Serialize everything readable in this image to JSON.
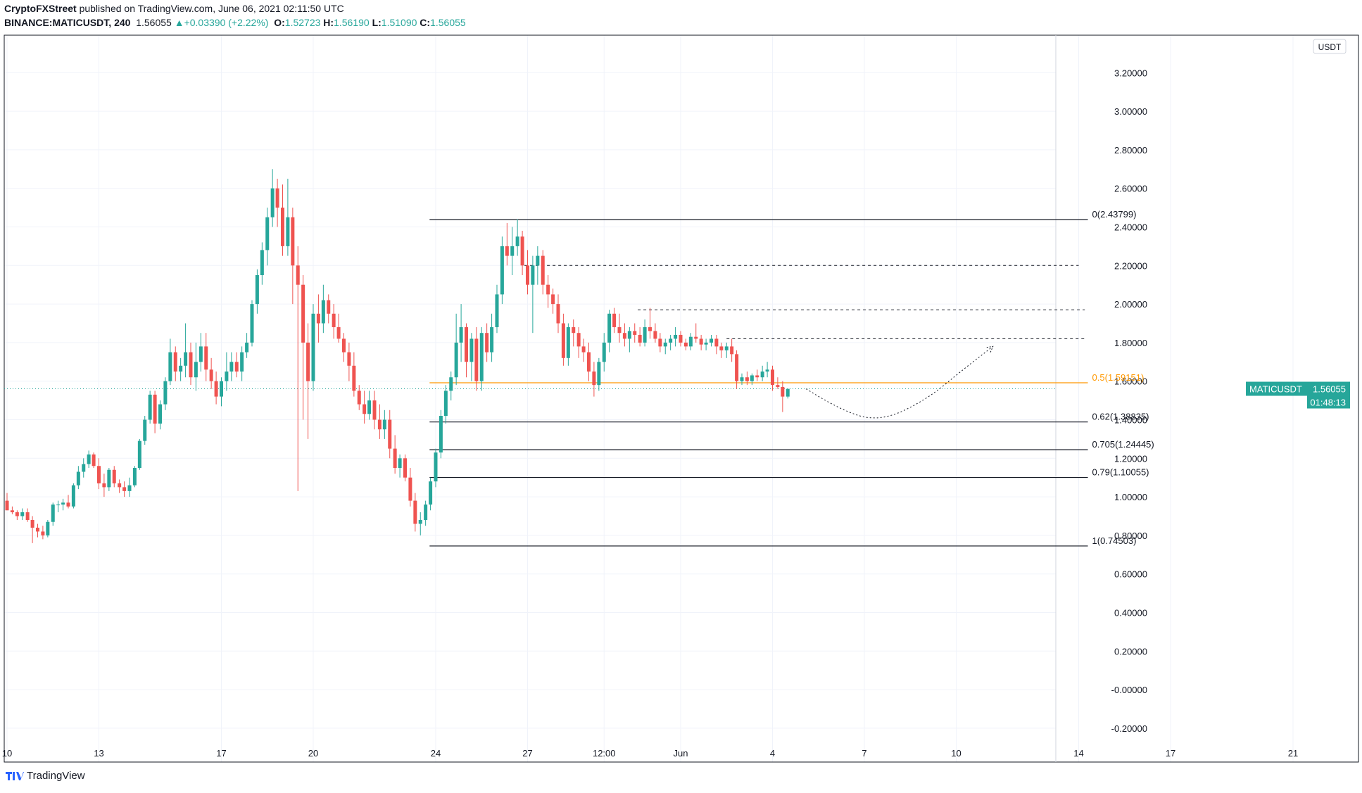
{
  "header": {
    "publisher": "CryptoFXStreet",
    "published_text": "published on TradingView.com, June 06, 2021 02:11:50 UTC",
    "symbol": "BINANCE:MATICUSDT, 240",
    "last": "1.56055",
    "change": "+0.03390 (+2.22%)",
    "o_label": "O:",
    "o": "1.52723",
    "h_label": "H:",
    "h": "1.56190",
    "l_label": "L:",
    "l": "1.51090",
    "c_label": "C:",
    "c": "1.56055"
  },
  "footer": {
    "brand": "TradingView"
  },
  "colors": {
    "up": "#26a69a",
    "down": "#ef5350",
    "fib_mid": "#ff9800",
    "grid": "#f0f3fa",
    "label_bg": "#26a69a"
  },
  "chart_data": {
    "type": "candlestick",
    "currency_label": "USDT",
    "ylim": [
      -0.28,
      3.4
    ],
    "y_ticks": [
      "3.20000",
      "3.00000",
      "2.80000",
      "2.60000",
      "2.40000",
      "2.20000",
      "2.00000",
      "1.80000",
      "1.60000",
      "1.40000",
      "1.20000",
      "1.00000",
      "0.80000",
      "0.60000",
      "0.40000",
      "0.20000",
      "-0.00000",
      "-0.20000"
    ],
    "y_tick_values": [
      3.2,
      3.0,
      2.8,
      2.6,
      2.4,
      2.2,
      2.0,
      1.8,
      1.6,
      1.4,
      1.2,
      1.0,
      0.8,
      0.6,
      0.4,
      0.2,
      0.0,
      -0.2
    ],
    "x_ticks": [
      "10",
      "13",
      "17",
      "20",
      "24",
      "27",
      "12:00",
      "Jun",
      "4",
      "7",
      "10",
      "14",
      "17",
      "21"
    ],
    "x_tick_days": [
      10,
      13,
      17,
      20,
      24,
      27,
      29.5,
      32,
      35,
      38,
      41,
      45,
      48,
      52
    ],
    "price_label": {
      "symbol": "MATICUSDT",
      "value": "1.56055",
      "countdown": "01:48:13",
      "y": 1.56055
    },
    "fib_levels": [
      {
        "label": "0(2.43799)",
        "value": 2.43799
      },
      {
        "label": "0.5(1.59151)",
        "value": 1.59151
      },
      {
        "label": "0.62(1.38835)",
        "value": 1.38835
      },
      {
        "label": "0.705(1.24445)",
        "value": 1.24445
      },
      {
        "label": "0.79(1.10055)",
        "value": 1.10055
      },
      {
        "label": "1(0.74503)",
        "value": 0.74503
      }
    ],
    "fib_start_day": 23.8,
    "fib_end_day": 45.3,
    "dashed_levels": [
      {
        "value": 2.2,
        "from": 26.9,
        "to": 45.0
      },
      {
        "value": 1.97,
        "from": 30.6,
        "to": 45.2
      },
      {
        "value": 1.82,
        "from": 33.5,
        "to": 45.2
      }
    ],
    "projection": [
      [
        36.1,
        1.56
      ],
      [
        37.2,
        1.45
      ],
      [
        38.5,
        1.39
      ],
      [
        40.0,
        1.5
      ],
      [
        41.3,
        1.67
      ],
      [
        42.2,
        1.78
      ]
    ],
    "candles": [
      [
        10.0,
        0.98,
        1.02,
        0.96,
        0.93
      ],
      [
        10.17,
        0.93,
        0.95,
        0.91,
        0.92
      ],
      [
        10.33,
        0.92,
        0.93,
        0.88,
        0.9
      ],
      [
        10.5,
        0.9,
        0.94,
        0.88,
        0.92
      ],
      [
        10.67,
        0.92,
        0.94,
        0.87,
        0.88
      ],
      [
        10.83,
        0.88,
        0.9,
        0.76,
        0.84
      ],
      [
        11.0,
        0.84,
        0.86,
        0.79,
        0.82
      ],
      [
        11.17,
        0.82,
        0.85,
        0.78,
        0.8
      ],
      [
        11.33,
        0.8,
        0.88,
        0.79,
        0.87
      ],
      [
        11.5,
        0.87,
        0.97,
        0.85,
        0.96
      ],
      [
        11.67,
        0.96,
        0.98,
        0.92,
        0.96
      ],
      [
        11.83,
        0.96,
        0.99,
        0.93,
        0.97
      ],
      [
        12.0,
        0.97,
        1.01,
        0.94,
        0.95
      ],
      [
        12.17,
        0.95,
        1.07,
        0.94,
        1.06
      ],
      [
        12.33,
        1.06,
        1.16,
        1.04,
        1.13
      ],
      [
        12.5,
        1.13,
        1.2,
        1.1,
        1.17
      ],
      [
        12.67,
        1.17,
        1.24,
        1.15,
        1.22
      ],
      [
        12.83,
        1.22,
        1.23,
        1.15,
        1.16
      ],
      [
        13.0,
        1.16,
        1.2,
        1.04,
        1.07
      ],
      [
        13.17,
        1.07,
        1.12,
        1.0,
        1.05
      ],
      [
        13.33,
        1.05,
        1.15,
        1.03,
        1.14
      ],
      [
        13.5,
        1.14,
        1.16,
        1.05,
        1.07
      ],
      [
        13.67,
        1.07,
        1.09,
        1.02,
        1.05
      ],
      [
        13.83,
        1.05,
        1.08,
        1.0,
        1.03
      ],
      [
        14.0,
        1.03,
        1.1,
        1.0,
        1.06
      ],
      [
        14.17,
        1.06,
        1.16,
        1.05,
        1.15
      ],
      [
        14.33,
        1.15,
        1.3,
        1.14,
        1.29
      ],
      [
        14.5,
        1.29,
        1.42,
        1.27,
        1.4
      ],
      [
        14.67,
        1.4,
        1.55,
        1.38,
        1.53
      ],
      [
        14.83,
        1.53,
        1.55,
        1.33,
        1.38
      ],
      [
        15.0,
        1.38,
        1.5,
        1.35,
        1.48
      ],
      [
        15.17,
        1.48,
        1.62,
        1.45,
        1.6
      ],
      [
        15.33,
        1.6,
        1.82,
        1.58,
        1.75
      ],
      [
        15.5,
        1.75,
        1.78,
        1.6,
        1.65
      ],
      [
        15.67,
        1.65,
        1.72,
        1.6,
        1.68
      ],
      [
        15.83,
        1.68,
        1.9,
        1.62,
        1.75
      ],
      [
        16.0,
        1.75,
        1.8,
        1.58,
        1.62
      ],
      [
        16.17,
        1.62,
        1.8,
        1.55,
        1.7
      ],
      [
        16.33,
        1.7,
        1.85,
        1.65,
        1.78
      ],
      [
        16.5,
        1.78,
        1.85,
        1.6,
        1.66
      ],
      [
        16.67,
        1.66,
        1.72,
        1.56,
        1.6
      ],
      [
        16.83,
        1.6,
        1.65,
        1.48,
        1.52
      ],
      [
        17.0,
        1.52,
        1.62,
        1.47,
        1.6
      ],
      [
        17.17,
        1.6,
        1.75,
        1.55,
        1.65
      ],
      [
        17.33,
        1.65,
        1.75,
        1.6,
        1.7
      ],
      [
        17.5,
        1.7,
        1.75,
        1.62,
        1.65
      ],
      [
        17.67,
        1.65,
        1.78,
        1.6,
        1.75
      ],
      [
        17.83,
        1.75,
        1.85,
        1.72,
        1.8
      ],
      [
        18.0,
        1.8,
        2.02,
        1.78,
        2.0
      ],
      [
        18.17,
        2.0,
        2.18,
        1.95,
        2.15
      ],
      [
        18.33,
        2.15,
        2.32,
        2.1,
        2.28
      ],
      [
        18.5,
        2.28,
        2.5,
        2.2,
        2.45
      ],
      [
        18.67,
        2.45,
        2.7,
        2.4,
        2.6
      ],
      [
        18.83,
        2.6,
        2.65,
        2.4,
        2.5
      ],
      [
        19.0,
        2.5,
        2.62,
        2.25,
        2.3
      ],
      [
        19.17,
        2.3,
        2.65,
        2.25,
        2.45
      ],
      [
        19.33,
        2.45,
        2.5,
        2.0,
        2.2
      ],
      [
        19.5,
        2.2,
        2.3,
        1.03,
        2.1
      ],
      [
        19.67,
        2.1,
        2.15,
        1.4,
        1.8
      ],
      [
        19.83,
        1.8,
        1.9,
        1.3,
        1.6
      ],
      [
        20.0,
        1.6,
        2.0,
        1.55,
        1.95
      ],
      [
        20.17,
        1.95,
        2.05,
        1.8,
        1.9
      ],
      [
        20.33,
        1.9,
        2.1,
        1.85,
        2.02
      ],
      [
        20.5,
        2.02,
        2.05,
        1.9,
        1.95
      ],
      [
        20.67,
        1.95,
        2.0,
        1.82,
        1.88
      ],
      [
        20.83,
        1.88,
        1.95,
        1.8,
        1.82
      ],
      [
        21.0,
        1.82,
        1.85,
        1.7,
        1.75
      ],
      [
        21.17,
        1.75,
        1.8,
        1.6,
        1.68
      ],
      [
        21.33,
        1.68,
        1.75,
        1.52,
        1.55
      ],
      [
        21.5,
        1.55,
        1.58,
        1.45,
        1.48
      ],
      [
        21.67,
        1.48,
        1.55,
        1.38,
        1.43
      ],
      [
        21.83,
        1.43,
        1.55,
        1.4,
        1.5
      ],
      [
        22.0,
        1.5,
        1.55,
        1.35,
        1.4
      ],
      [
        22.17,
        1.4,
        1.48,
        1.3,
        1.35
      ],
      [
        22.33,
        1.35,
        1.45,
        1.3,
        1.4
      ],
      [
        22.5,
        1.4,
        1.45,
        1.2,
        1.25
      ],
      [
        22.67,
        1.25,
        1.32,
        1.12,
        1.15
      ],
      [
        22.83,
        1.15,
        1.22,
        1.1,
        1.2
      ],
      [
        23.0,
        1.2,
        1.22,
        1.08,
        1.1
      ],
      [
        23.17,
        1.1,
        1.15,
        0.95,
        0.98
      ],
      [
        23.33,
        0.98,
        1.02,
        0.82,
        0.86
      ],
      [
        23.5,
        0.86,
        0.92,
        0.8,
        0.88
      ],
      [
        23.67,
        0.88,
        0.98,
        0.85,
        0.96
      ],
      [
        23.83,
        0.96,
        1.1,
        0.93,
        1.08
      ],
      [
        24.0,
        1.08,
        1.25,
        1.05,
        1.23
      ],
      [
        24.17,
        1.23,
        1.45,
        1.2,
        1.42
      ],
      [
        24.33,
        1.42,
        1.58,
        1.38,
        1.55
      ],
      [
        24.5,
        1.55,
        1.65,
        1.5,
        1.62
      ],
      [
        24.67,
        1.62,
        1.95,
        1.58,
        1.8
      ],
      [
        24.83,
        1.8,
        2.0,
        1.7,
        1.88
      ],
      [
        25.0,
        1.88,
        1.9,
        1.62,
        1.7
      ],
      [
        25.17,
        1.7,
        1.85,
        1.6,
        1.82
      ],
      [
        25.33,
        1.82,
        1.88,
        1.55,
        1.6
      ],
      [
        25.5,
        1.6,
        1.88,
        1.55,
        1.85
      ],
      [
        25.67,
        1.85,
        1.9,
        1.7,
        1.75
      ],
      [
        25.83,
        1.75,
        1.95,
        1.7,
        1.88
      ],
      [
        26.0,
        1.88,
        2.1,
        1.85,
        2.05
      ],
      [
        26.17,
        2.05,
        2.35,
        2.0,
        2.3
      ],
      [
        26.33,
        2.3,
        2.42,
        2.2,
        2.25
      ],
      [
        26.5,
        2.25,
        2.4,
        2.15,
        2.3
      ],
      [
        26.67,
        2.3,
        2.44,
        2.25,
        2.35
      ],
      [
        26.83,
        2.35,
        2.38,
        2.15,
        2.2
      ],
      [
        27.0,
        2.2,
        2.28,
        2.05,
        2.1
      ],
      [
        27.17,
        2.1,
        2.25,
        1.85,
        2.2
      ],
      [
        27.33,
        2.2,
        2.3,
        2.1,
        2.25
      ],
      [
        27.5,
        2.25,
        2.28,
        2.05,
        2.1
      ],
      [
        27.67,
        2.1,
        2.15,
        1.98,
        2.05
      ],
      [
        27.83,
        2.05,
        2.08,
        1.95,
        2.0
      ],
      [
        28.0,
        2.0,
        2.05,
        1.85,
        1.9
      ],
      [
        28.17,
        1.9,
        1.95,
        1.68,
        1.72
      ],
      [
        28.33,
        1.72,
        1.9,
        1.68,
        1.88
      ],
      [
        28.5,
        1.88,
        1.92,
        1.78,
        1.85
      ],
      [
        28.67,
        1.85,
        1.88,
        1.72,
        1.78
      ],
      [
        28.83,
        1.78,
        1.82,
        1.7,
        1.75
      ],
      [
        29.0,
        1.75,
        1.8,
        1.6,
        1.65
      ],
      [
        29.17,
        1.65,
        1.7,
        1.52,
        1.58
      ],
      [
        29.33,
        1.58,
        1.72,
        1.55,
        1.7
      ],
      [
        29.5,
        1.7,
        1.85,
        1.65,
        1.8
      ],
      [
        29.67,
        1.8,
        1.97,
        1.75,
        1.95
      ],
      [
        29.83,
        1.95,
        1.98,
        1.85,
        1.88
      ],
      [
        30.0,
        1.88,
        1.95,
        1.8,
        1.85
      ],
      [
        30.17,
        1.85,
        1.9,
        1.78,
        1.82
      ],
      [
        30.33,
        1.82,
        1.88,
        1.75,
        1.86
      ],
      [
        30.5,
        1.86,
        1.9,
        1.8,
        1.84
      ],
      [
        30.67,
        1.84,
        1.88,
        1.78,
        1.8
      ],
      [
        30.83,
        1.8,
        1.92,
        1.78,
        1.88
      ],
      [
        31.0,
        1.88,
        1.98,
        1.82,
        1.86
      ],
      [
        31.17,
        1.86,
        1.9,
        1.8,
        1.82
      ],
      [
        31.33,
        1.82,
        1.85,
        1.75,
        1.78
      ],
      [
        31.5,
        1.78,
        1.82,
        1.74,
        1.8
      ],
      [
        31.67,
        1.8,
        1.84,
        1.76,
        1.82
      ],
      [
        31.83,
        1.82,
        1.88,
        1.78,
        1.84
      ],
      [
        32.0,
        1.84,
        1.86,
        1.78,
        1.8
      ],
      [
        32.17,
        1.8,
        1.82,
        1.76,
        1.78
      ],
      [
        32.33,
        1.78,
        1.85,
        1.76,
        1.83
      ],
      [
        32.5,
        1.83,
        1.9,
        1.8,
        1.82
      ],
      [
        32.67,
        1.82,
        1.84,
        1.76,
        1.79
      ],
      [
        32.83,
        1.79,
        1.82,
        1.76,
        1.8
      ],
      [
        33.0,
        1.8,
        1.84,
        1.78,
        1.82
      ],
      [
        33.17,
        1.82,
        1.84,
        1.74,
        1.78
      ],
      [
        33.33,
        1.78,
        1.8,
        1.72,
        1.76
      ],
      [
        33.5,
        1.76,
        1.8,
        1.72,
        1.78
      ],
      [
        33.67,
        1.78,
        1.82,
        1.7,
        1.74
      ],
      [
        33.83,
        1.74,
        1.76,
        1.56,
        1.6
      ],
      [
        34.0,
        1.6,
        1.64,
        1.58,
        1.62
      ],
      [
        34.17,
        1.62,
        1.65,
        1.58,
        1.6
      ],
      [
        34.33,
        1.6,
        1.64,
        1.58,
        1.63
      ],
      [
        34.5,
        1.63,
        1.66,
        1.6,
        1.62
      ],
      [
        34.67,
        1.62,
        1.68,
        1.6,
        1.65
      ],
      [
        34.83,
        1.65,
        1.7,
        1.62,
        1.66
      ],
      [
        35.0,
        1.66,
        1.68,
        1.55,
        1.58
      ],
      [
        35.17,
        1.58,
        1.62,
        1.56,
        1.57
      ],
      [
        35.33,
        1.57,
        1.6,
        1.44,
        1.52
      ],
      [
        35.5,
        1.52,
        1.56,
        1.51,
        1.56
      ]
    ]
  }
}
